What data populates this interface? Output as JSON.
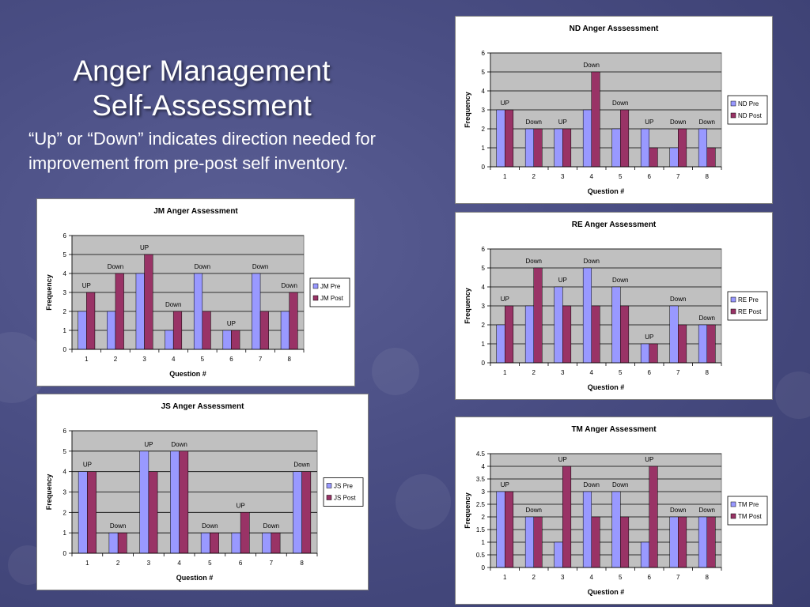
{
  "slide": {
    "title_line1": "Anger Management",
    "title_line2": "Self-Assessment",
    "subtitle": "“Up” or “Down” indicates direction needed for improvement from pre-post self inventory."
  },
  "colors": {
    "pre": "#9999ff",
    "post": "#993366",
    "plot_bg": "#c0c0c0"
  },
  "chart_data": [
    {
      "id": "nd",
      "type": "bar",
      "title": "ND Anger Asssessment",
      "xlabel": "Question #",
      "ylabel": "Frequency",
      "categories": [
        "1",
        "2",
        "3",
        "4",
        "5",
        "6",
        "7",
        "8"
      ],
      "ylim": [
        0,
        6
      ],
      "yticks": [
        "0",
        "1",
        "2",
        "3",
        "4",
        "5",
        "6"
      ],
      "series": [
        {
          "name": "ND Pre",
          "values": [
            3,
            2,
            2,
            3,
            2,
            2,
            1,
            2
          ]
        },
        {
          "name": "ND Post",
          "values": [
            3,
            2,
            2,
            5,
            3,
            1,
            2,
            1
          ]
        }
      ],
      "annotations": [
        "UP",
        "Down",
        "UP",
        "Down",
        "Down",
        "UP",
        "Down",
        "Down"
      ],
      "legend": "right"
    },
    {
      "id": "jm",
      "type": "bar",
      "title": "JM Anger Assessment",
      "xlabel": "Question #",
      "ylabel": "Frequency",
      "categories": [
        "1",
        "2",
        "3",
        "4",
        "5",
        "6",
        "7",
        "8"
      ],
      "ylim": [
        0,
        6
      ],
      "yticks": [
        "0",
        "1",
        "2",
        "3",
        "4",
        "5",
        "6"
      ],
      "series": [
        {
          "name": "JM Pre",
          "values": [
            2,
            2,
            4,
            1,
            4,
            1,
            4,
            2
          ]
        },
        {
          "name": "JM Post",
          "values": [
            3,
            4,
            5,
            2,
            2,
            1,
            2,
            3
          ]
        }
      ],
      "annotations": [
        "UP",
        "Down",
        "UP",
        "Down",
        "Down",
        "UP",
        "Down",
        "Down"
      ],
      "legend": "right"
    },
    {
      "id": "js",
      "type": "bar",
      "title": "JS Anger Assessment",
      "xlabel": "Question #",
      "ylabel": "Frequency",
      "categories": [
        "1",
        "2",
        "3",
        "4",
        "5",
        "6",
        "7",
        "8"
      ],
      "ylim": [
        0,
        6
      ],
      "yticks": [
        "0",
        "1",
        "2",
        "3",
        "4",
        "5",
        "6"
      ],
      "series": [
        {
          "name": "JS Pre",
          "values": [
            4,
            1,
            5,
            5,
            1,
            1,
            1,
            4
          ]
        },
        {
          "name": "JS Post",
          "values": [
            4,
            1,
            4,
            5,
            1,
            2,
            1,
            4
          ]
        }
      ],
      "annotations": [
        "UP",
        "Down",
        "UP",
        "Down",
        "Down",
        "UP",
        "Down",
        "Down"
      ],
      "legend": "right"
    },
    {
      "id": "re",
      "type": "bar",
      "title": "RE Anger Assessment",
      "xlabel": "Question #",
      "ylabel": "Frequency",
      "categories": [
        "1",
        "2",
        "3",
        "4",
        "5",
        "6",
        "7",
        "8"
      ],
      "ylim": [
        0,
        6
      ],
      "yticks": [
        "0",
        "1",
        "2",
        "3",
        "4",
        "5",
        "6"
      ],
      "series": [
        {
          "name": "RE Pre",
          "values": [
            2,
            3,
            4,
            5,
            4,
            1,
            3,
            2
          ]
        },
        {
          "name": "RE Post",
          "values": [
            3,
            5,
            3,
            3,
            3,
            1,
            2,
            2
          ]
        }
      ],
      "annotations": [
        "UP",
        "Down",
        "UP",
        "Down",
        "Down",
        "UP",
        "Down",
        "Down"
      ],
      "legend": "right"
    },
    {
      "id": "tm",
      "type": "bar",
      "title": "TM Anger Assessment",
      "xlabel": "Question #",
      "ylabel": "Frequency",
      "categories": [
        "1",
        "2",
        "3",
        "4",
        "5",
        "6",
        "7",
        "8"
      ],
      "ylim": [
        0,
        4.5
      ],
      "yticks": [
        "0",
        "0.5",
        "1",
        "1.5",
        "2",
        "2.5",
        "3",
        "3.5",
        "4",
        "4.5"
      ],
      "series": [
        {
          "name": "TM Pre",
          "values": [
            3,
            2,
            1,
            3,
            3,
            1,
            2,
            2
          ]
        },
        {
          "name": "TM Post",
          "values": [
            3,
            2,
            4,
            2,
            2,
            4,
            2,
            2
          ]
        }
      ],
      "annotations": [
        "UP",
        "Down",
        "UP",
        "Down",
        "Down",
        "UP",
        "Down",
        "Down"
      ],
      "legend": "right"
    }
  ]
}
